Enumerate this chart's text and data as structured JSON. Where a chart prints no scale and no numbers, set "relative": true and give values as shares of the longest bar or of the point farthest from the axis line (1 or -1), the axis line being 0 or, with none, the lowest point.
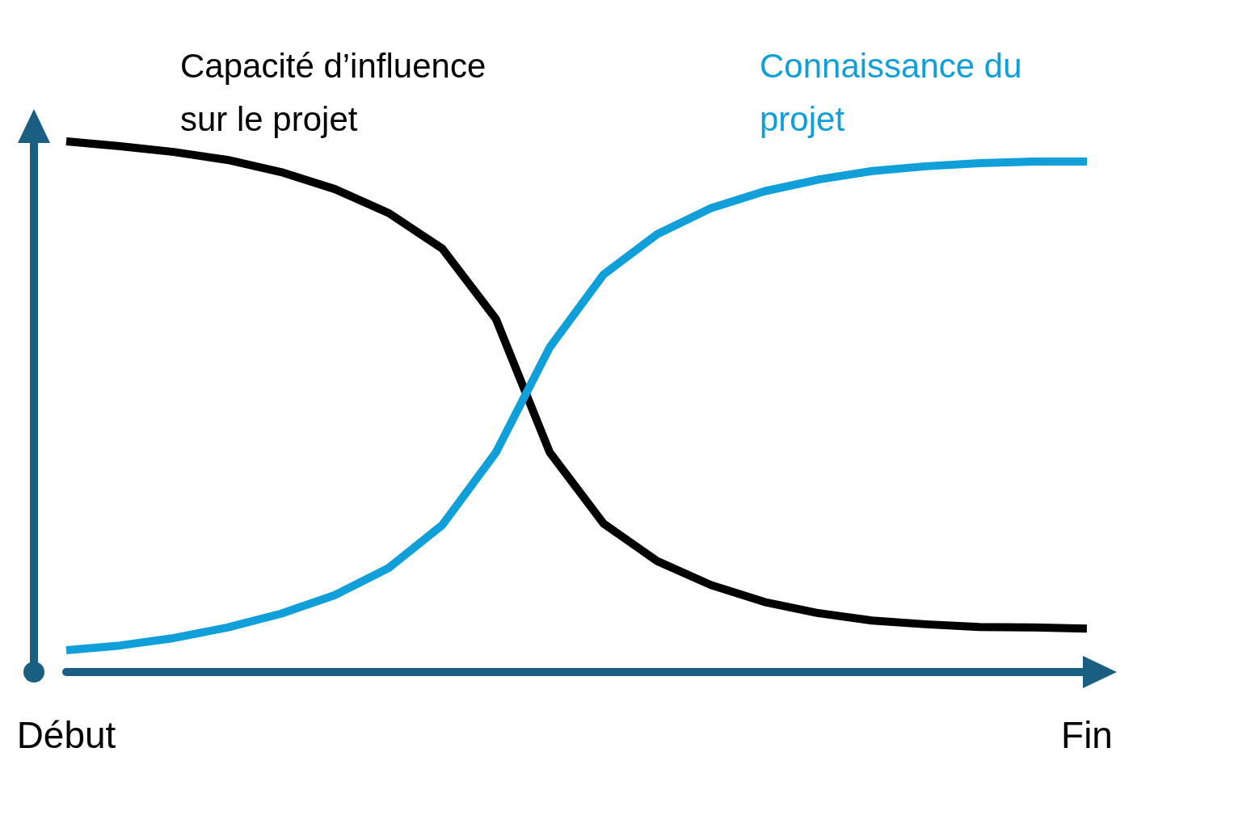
{
  "chart_data": {
    "type": "line",
    "relative": true,
    "legend": false,
    "grid": false,
    "marker": "none",
    "line_style": "solid",
    "categories": [
      "Début",
      null,
      null,
      null,
      null,
      null,
      null,
      null,
      null,
      null,
      null,
      null,
      null,
      null,
      null,
      null,
      null,
      null,
      null,
      "Fin"
    ],
    "series": [
      {
        "name": "Capacité d’influence sur le projet",
        "color": "#000000",
        "values": [
          1,
          0.991,
          0.98,
          0.965,
          0.942,
          0.91,
          0.865,
          0.798,
          0.665,
          0.414,
          0.28,
          0.209,
          0.164,
          0.132,
          0.111,
          0.097,
          0.09,
          0.085,
          0.084,
          0.082
        ]
      },
      {
        "name": "Connaissance du projet",
        "color": "#109fd8",
        "values": [
          0.041,
          0.05,
          0.064,
          0.084,
          0.11,
          0.145,
          0.196,
          0.277,
          0.414,
          0.612,
          0.749,
          0.825,
          0.874,
          0.906,
          0.928,
          0.944,
          0.953,
          0.959,
          0.962,
          0.962
        ]
      }
    ]
  }
}
